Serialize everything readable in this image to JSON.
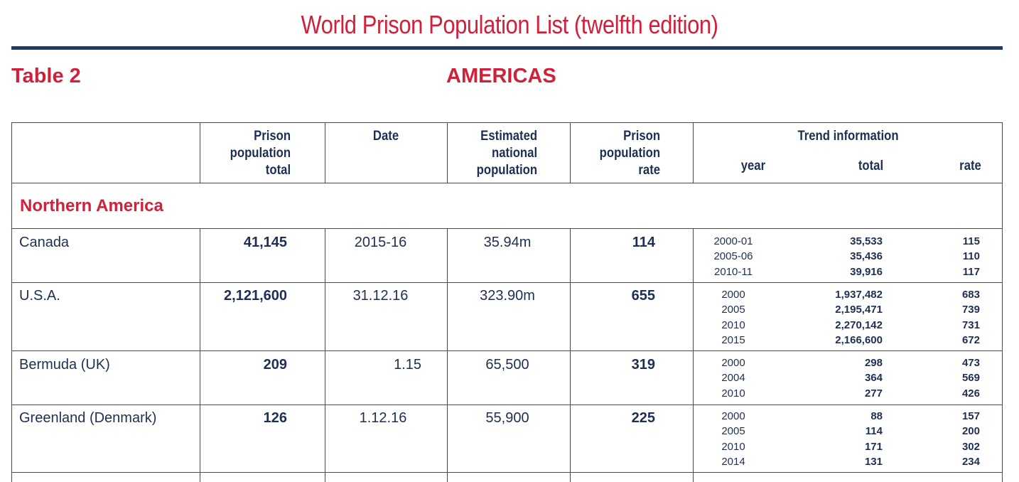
{
  "document": {
    "title": "World Prison Population List (twelfth edition)",
    "table_label": "Table 2",
    "region": "AMERICAS"
  },
  "headers": {
    "prison_total": [
      "Prison",
      "population",
      "total"
    ],
    "date": "Date",
    "national_population": [
      "Estimated",
      "national",
      "population"
    ],
    "prison_rate": [
      "Prison",
      "population",
      "rate"
    ],
    "trend": {
      "title": "Trend information",
      "year": "year",
      "total": "total",
      "rate": "rate"
    }
  },
  "section": "Northern America",
  "rows": [
    {
      "country": "Canada",
      "prison_total": "41,145",
      "date": "2015-16",
      "national_population": "35.94m",
      "prison_rate": "114",
      "trend": [
        {
          "year": "2000-01",
          "total": "35,533",
          "rate": "115"
        },
        {
          "year": "2005-06",
          "total": "35,436",
          "rate": "110"
        },
        {
          "year": "2010-11",
          "total": "39,916",
          "rate": "117"
        }
      ]
    },
    {
      "country": "U.S.A.",
      "prison_total": "2,121,600",
      "date": "31.12.16",
      "national_population": "323.90m",
      "prison_rate": "655",
      "trend": [
        {
          "year": "2000",
          "total": "1,937,482",
          "rate": "683"
        },
        {
          "year": "2005",
          "total": "2,195,471",
          "rate": "739"
        },
        {
          "year": "2010",
          "total": "2,270,142",
          "rate": "731"
        },
        {
          "year": "2015",
          "total": "2,166,600",
          "rate": "672"
        }
      ]
    },
    {
      "country": "Bermuda (UK)",
      "prison_total": "209",
      "date": "1.15",
      "national_population": "65,500",
      "prison_rate": "319",
      "trend": [
        {
          "year": "2000",
          "total": "298",
          "rate": "473"
        },
        {
          "year": "2004",
          "total": "364",
          "rate": "569"
        },
        {
          "year": "2010",
          "total": "277",
          "rate": "426"
        }
      ]
    },
    {
      "country": "Greenland (Denmark)",
      "prison_total": "126",
      "date": "1.12.16",
      "national_population": "55,900",
      "prison_rate": "225",
      "trend": [
        {
          "year": "2000",
          "total": "88",
          "rate": "157"
        },
        {
          "year": "2005",
          "total": "114",
          "rate": "200"
        },
        {
          "year": "2010",
          "total": "171",
          "rate": "302"
        },
        {
          "year": "2014",
          "total": "131",
          "rate": "234"
        }
      ]
    }
  ]
}
